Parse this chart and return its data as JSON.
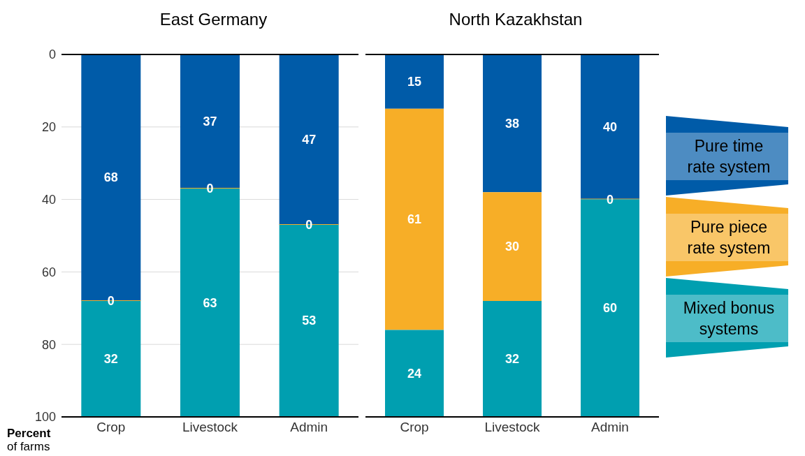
{
  "chart_data": [
    {
      "type": "bar",
      "title": "East Germany",
      "ylabel": "Percent of farms",
      "categories": [
        "Crop",
        "Livestock",
        "Admin"
      ],
      "stacked": true,
      "data_labels": true,
      "grid": "y",
      "ylim": [
        100,
        0
      ],
      "yticks": [
        0,
        20,
        40,
        60,
        80,
        100
      ],
      "series": [
        {
          "color": "#005ba8",
          "values": [
            68,
            37,
            47
          ]
        },
        {
          "color": "#f7ae27",
          "values": [
            0,
            0,
            0
          ]
        },
        {
          "color": "#009fb0",
          "values": [
            32,
            63,
            53
          ]
        }
      ]
    },
    {
      "type": "bar",
      "title": "North Kazakhstan",
      "categories": [
        "Crop",
        "Livestock",
        "Admin"
      ],
      "stacked": true,
      "data_labels": true,
      "grid": "y",
      "ylim": [
        100,
        0
      ],
      "yticks": [
        0,
        20,
        40,
        60,
        80,
        100
      ],
      "tick_labels": "x",
      "legend": "right",
      "series": [
        {
          "name": "Pure time rate system",
          "color": "#005ba8",
          "values": [
            15,
            38,
            40
          ]
        },
        {
          "name": "Pure piece rate system",
          "color": "#f7ae27",
          "values": [
            61,
            30,
            0
          ]
        },
        {
          "name": "Mixed bonus systems",
          "color": "#009fb0",
          "values": [
            24,
            32,
            60
          ]
        }
      ]
    }
  ]
}
